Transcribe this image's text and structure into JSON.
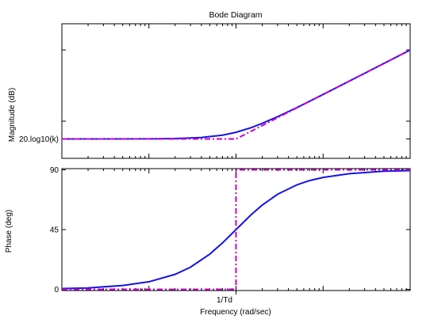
{
  "chart_data": {
    "type": "line",
    "title": "Bode Diagram",
    "xlabel": "Frequency  (rad/sec)",
    "x_scale": "log",
    "x_break_label": "1/Td",
    "colors": {
      "exact": "#1414e6",
      "asymptote": "#cc00cc"
    },
    "panels": [
      {
        "id": "magnitude",
        "ylabel": "Magnitude (dB)",
        "y_tick_labels": [
          {
            "value": 0,
            "label": "20.log10(k)"
          }
        ],
        "series": [
          {
            "style": "exact",
            "x": [
              0.01,
              0.03,
              0.1,
              0.2,
              0.4,
              0.7,
              1,
              1.5,
              2,
              3,
              5,
              10,
              30,
              100
            ],
            "y": [
              0,
              0.004,
              0.04,
              0.17,
              0.64,
              1.7,
              3.0,
              5.1,
              7.0,
              10.0,
              14.1,
              20.0,
              29.5,
              40.0
            ]
          },
          {
            "style": "asymptote",
            "x": [
              0.01,
              1,
              100
            ],
            "y": [
              0,
              0,
              40
            ]
          }
        ]
      },
      {
        "id": "phase",
        "ylabel": "Phase (deg)",
        "y_tick_labels": [
          {
            "value": 0,
            "label": "0"
          },
          {
            "value": 45,
            "label": "45"
          },
          {
            "value": 90,
            "label": "90"
          }
        ],
        "series": [
          {
            "style": "exact",
            "x": [
              0.01,
              0.02,
              0.05,
              0.1,
              0.2,
              0.3,
              0.5,
              0.7,
              1,
              1.5,
              2,
              3,
              5,
              7,
              10,
              20,
              50,
              100
            ],
            "y": [
              0.6,
              1.1,
              2.9,
              5.7,
              11.3,
              16.7,
              26.6,
              35.0,
              45.0,
              56.3,
              63.4,
              71.6,
              78.7,
              81.9,
              84.3,
              87.1,
              88.9,
              89.4
            ]
          },
          {
            "style": "asymptote",
            "x": [
              0.01,
              1,
              1,
              100
            ],
            "y": [
              0,
              0,
              90,
              90
            ]
          }
        ]
      }
    ]
  }
}
